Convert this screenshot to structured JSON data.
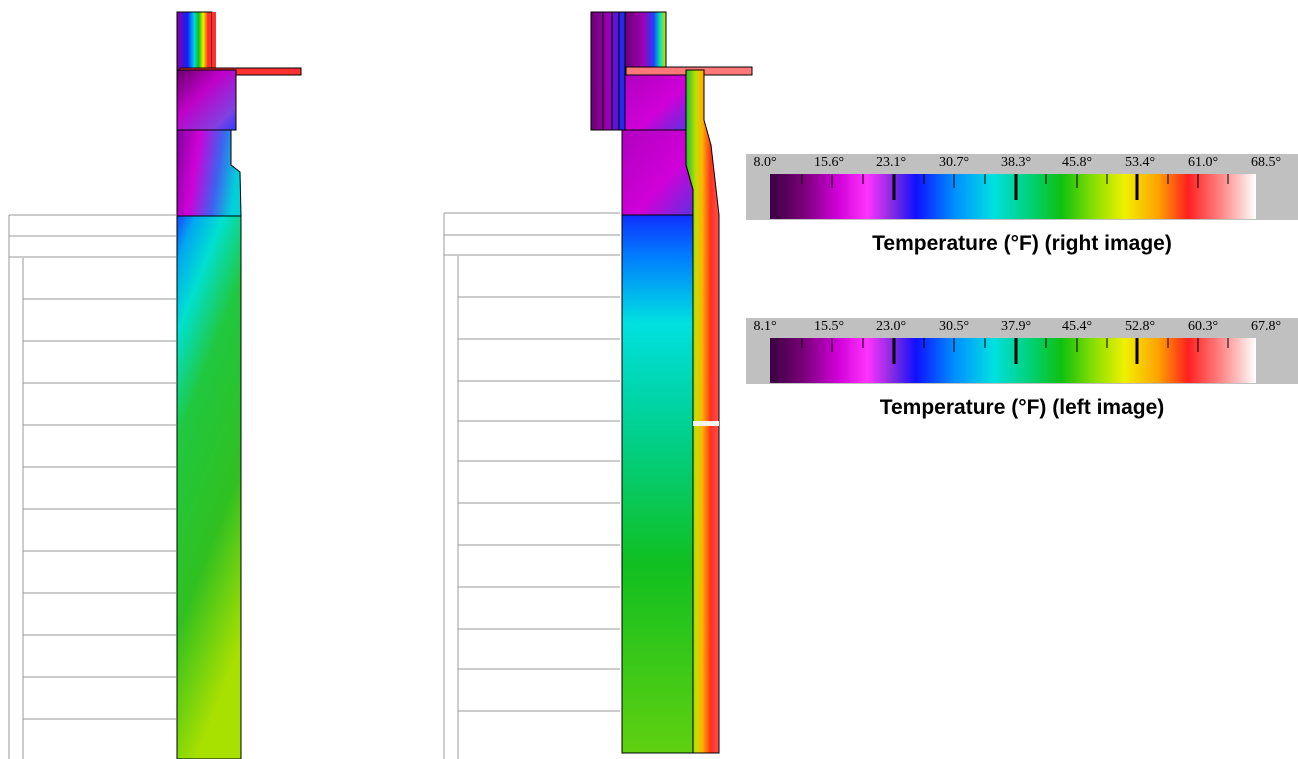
{
  "legends": [
    {
      "id": "right",
      "caption": "Temperature (°F) (right image)",
      "tick_labels": [
        "8.0°",
        "15.6°",
        "23.1°",
        "30.7°",
        "38.3°",
        "45.8°",
        "53.4°",
        "61.0°",
        "68.5°"
      ]
    },
    {
      "id": "left",
      "caption": "Temperature (°F) (left image)",
      "tick_labels": [
        "8.1°",
        "15.5°",
        "23.0°",
        "30.5°",
        "37.9°",
        "45.4°",
        "52.8°",
        "60.3°",
        "67.8°"
      ]
    }
  ],
  "colormap": [
    "#3a0040",
    "#7a007a",
    "#d000d8",
    "#ff33ff",
    "#8a2be2",
    "#1010ff",
    "#0090ff",
    "#00e0e0",
    "#00d070",
    "#10c010",
    "#8fe000",
    "#f0f000",
    "#ffa000",
    "#ff2020",
    "#ff8888",
    "#ffffff"
  ]
}
